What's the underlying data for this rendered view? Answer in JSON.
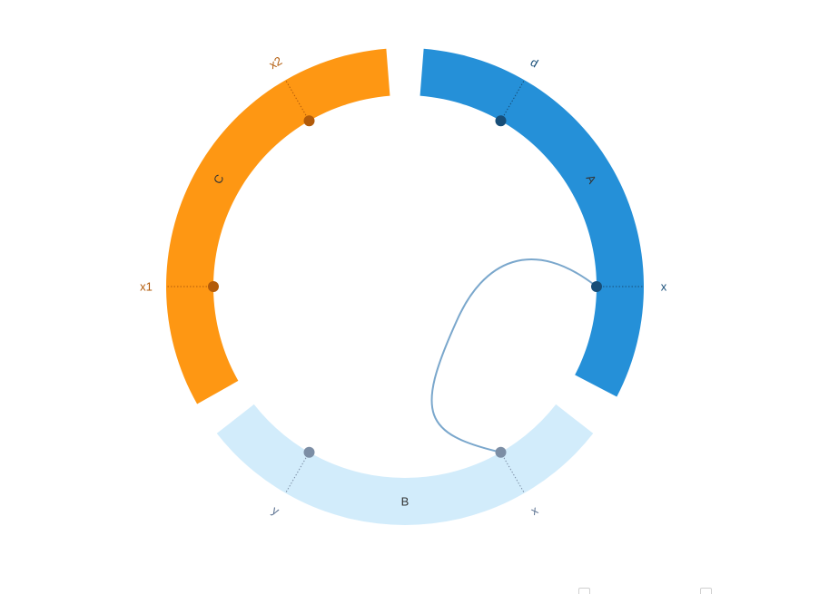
{
  "diagram": {
    "type": "chord",
    "segments": [
      {
        "id": "A",
        "label": "A",
        "color": "#2590d8",
        "ports": [
          {
            "id": "A-d",
            "label": "d",
            "dot": "#174e78",
            "label_color": "#174e78"
          },
          {
            "id": "A-x",
            "label": "x",
            "dot": "#174e78",
            "label_color": "#174e78"
          }
        ]
      },
      {
        "id": "B",
        "label": "B",
        "color": "#d2ecfb",
        "ports": [
          {
            "id": "B-x",
            "label": "x",
            "dot": "#7c8ea5",
            "label_color": "#5a7090"
          },
          {
            "id": "B-y",
            "label": "y",
            "dot": "#7c8ea5",
            "label_color": "#5a7090"
          }
        ]
      },
      {
        "id": "C",
        "label": "C",
        "color": "#fe9713",
        "ports": [
          {
            "id": "C-x2",
            "label": "x2",
            "dot": "#b25b0a",
            "label_color": "#b25b0a"
          },
          {
            "id": "C-x1",
            "label": "x1",
            "dot": "#b25b0a",
            "label_color": "#b25b0a"
          }
        ]
      }
    ],
    "links": [
      {
        "from": "A-x",
        "to": "B-x",
        "color": "#7aa7cc"
      }
    ],
    "label_color": "#333333"
  }
}
